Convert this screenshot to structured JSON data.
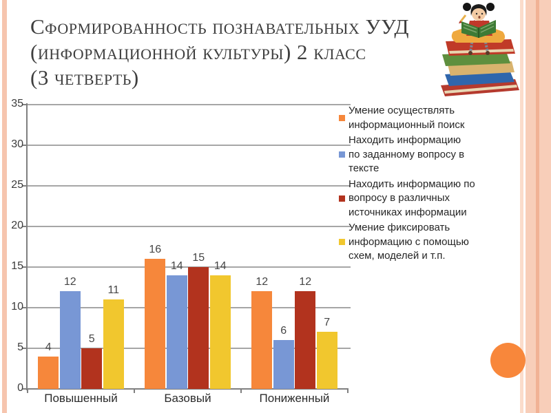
{
  "slide": {
    "title_lines": [
      "Сформированность познавательных УУД",
      "(информационной культуры) 2 класс",
      "(3 четверть)"
    ]
  },
  "chart_data": {
    "type": "bar",
    "title": "Сформированность познавательных УУД (информационной культуры) 2 класс (3 четверть)",
    "categories": [
      "Повышенный",
      "Базовый",
      "Пониженный"
    ],
    "series": [
      {
        "name": "Умение осуществлять информационный поиск",
        "legend_lines": [
          "Умение осуществлять",
          "информационный поиск"
        ],
        "color": "#F6873B",
        "values": [
          4,
          16,
          12
        ]
      },
      {
        "name": "Находить информацию по заданному вопросу в тексте",
        "legend_lines": [
          "Находить информацию",
          "по заданному вопросу в",
          "тексте"
        ],
        "color": "#7897D5",
        "values": [
          12,
          14,
          6
        ]
      },
      {
        "name": "Находить информацию по вопросу в различных источниках информации",
        "legend_lines": [
          "Находить информацию по",
          "вопросу в различных",
          "источниках информации"
        ],
        "color": "#B2331E",
        "values": [
          5,
          15,
          12
        ]
      },
      {
        "name": "Умение фиксировать информацию с помощью схем, моделей и т.п.",
        "legend_lines": [
          "Умение фиксировать",
          "информацию с помощью",
          "схем, моделей и т.п."
        ],
        "color": "#F1C72E",
        "values": [
          11,
          14,
          7
        ]
      }
    ],
    "xlabel": "",
    "ylabel": "",
    "ylim": [
      0,
      35
    ],
    "yticks": [
      0,
      5,
      10,
      15,
      20,
      25,
      30,
      35
    ],
    "grid": true,
    "legend_position": "right",
    "value_labels": true
  },
  "decor": {
    "grid_color": "#A6A6A6",
    "axis_color": "#7F7F7F",
    "accent_circle_color": "#F8873B",
    "frame_stripe_color": "#F6C5AE",
    "illustration": "girl-reading-on-book-stack"
  }
}
